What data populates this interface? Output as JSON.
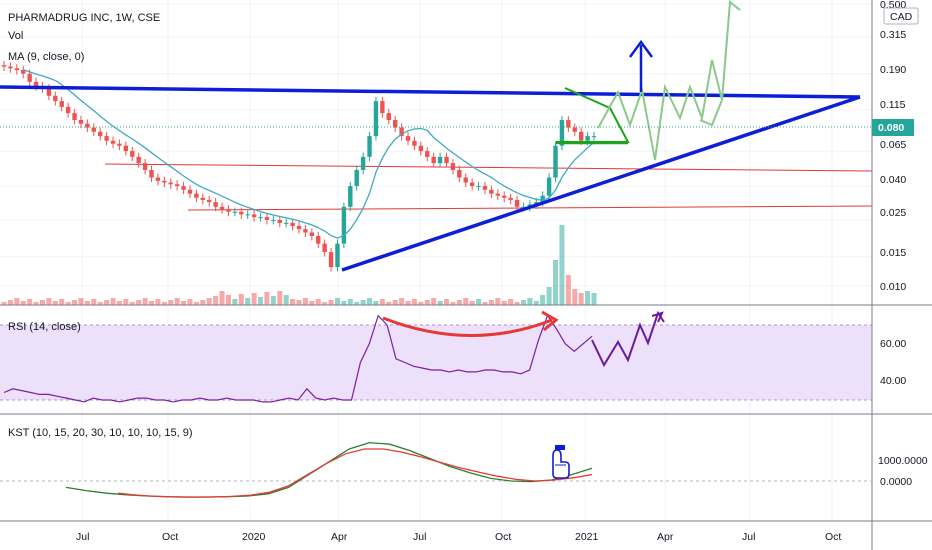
{
  "header": {
    "title": "PHARMADRUG INC, 1W, CSE",
    "vol_label": "Vol",
    "ma_label": "MA (9, close, 0)",
    "currency": "CAD"
  },
  "price_axis": {
    "ticks": [
      "0.500",
      "0.315",
      "0.190",
      "0.115",
      "0.065",
      "0.040",
      "0.025",
      "0.015",
      "0.010"
    ],
    "last_price": "0.080"
  },
  "rsi": {
    "label": "RSI (14, close)",
    "ticks": [
      "60.00",
      "40.00"
    ]
  },
  "kst": {
    "label": "KST (10, 15, 20, 30, 10, 10, 10, 15, 9)",
    "ticks": [
      "1000.0000",
      "0.0000"
    ]
  },
  "time_axis": {
    "ticks": [
      "Jul",
      "Oct",
      "2020",
      "Apr",
      "Jul",
      "Oct",
      "2021",
      "Apr",
      "Jul",
      "Oct"
    ]
  },
  "colors": {
    "up": "#26a69a",
    "down": "#ef5350",
    "trendline": "#0d1fd6",
    "ma": "#3fa9c4",
    "rsi": "#7b1fa2",
    "kst": "#2e7d32",
    "signal": "#e53935",
    "price_badge": "#26a69a",
    "projection": "#8bc98b",
    "rsi_band": "#ece0fa"
  },
  "chart_data": [
    {
      "type": "candlestick",
      "scale": "log",
      "title": "PHARMADRUG INC, 1W, CSE",
      "x_labels": [
        "Jul",
        "Oct",
        "2020",
        "Apr",
        "Jul",
        "Oct",
        "2021",
        "Apr",
        "Jul",
        "Oct"
      ],
      "y_ticks": [
        0.5,
        0.315,
        0.19,
        0.115,
        0.065,
        0.04,
        0.025,
        0.015,
        0.01
      ],
      "last_price": 0.08,
      "weekly_close_approx": [
        0.21,
        0.205,
        0.2,
        0.19,
        0.17,
        0.16,
        0.155,
        0.14,
        0.13,
        0.12,
        0.11,
        0.1,
        0.095,
        0.09,
        0.085,
        0.08,
        0.075,
        0.072,
        0.07,
        0.065,
        0.06,
        0.055,
        0.05,
        0.045,
        0.043,
        0.042,
        0.041,
        0.04,
        0.038,
        0.036,
        0.034,
        0.033,
        0.032,
        0.03,
        0.029,
        0.028,
        0.028,
        0.027,
        0.027,
        0.026,
        0.026,
        0.025,
        0.025,
        0.024,
        0.024,
        0.023,
        0.022,
        0.021,
        0.02,
        0.018,
        0.016,
        0.013,
        0.018,
        0.03,
        0.04,
        0.05,
        0.06,
        0.08,
        0.13,
        0.11,
        0.1,
        0.09,
        0.08,
        0.075,
        0.07,
        0.065,
        0.06,
        0.055,
        0.06,
        0.055,
        0.05,
        0.045,
        0.042,
        0.04,
        0.04,
        0.038,
        0.036,
        0.035,
        0.034,
        0.033,
        0.03,
        0.03,
        0.031,
        0.032,
        0.035,
        0.045,
        0.07,
        0.1,
        0.09,
        0.085,
        0.075,
        0.08,
        0.08
      ],
      "horizontal_levels": [
        0.048,
        0.027
      ],
      "resistance_line": {
        "from": 0.14,
        "to": 0.13
      },
      "support_line": {
        "from": 0.0115,
        "to": 0.13
      }
    },
    {
      "type": "line",
      "name": "RSI (14, close)",
      "y_ticks": [
        60,
        40
      ],
      "values": [
        34,
        36,
        35,
        34,
        33,
        33,
        32,
        31,
        30,
        29,
        31,
        30,
        30,
        29,
        30,
        31,
        31,
        30,
        30,
        29,
        30,
        30,
        31,
        30,
        30,
        31,
        30,
        30,
        30,
        29,
        29,
        30,
        31,
        30,
        36,
        31,
        30,
        31,
        30,
        30,
        50,
        60,
        75,
        70,
        52,
        50,
        48,
        47,
        46,
        46,
        45,
        46,
        45,
        45,
        46,
        46,
        45,
        45,
        44,
        46,
        62,
        75,
        68,
        60,
        56,
        60,
        64
      ],
      "projection": [
        60,
        50,
        58,
        53,
        62,
        59,
        72
      ]
    },
    {
      "type": "line",
      "name": "KST (10, 15, 20, 30, 10, 10, 10, 15, 9)",
      "y_ticks": [
        1000,
        0
      ],
      "series": [
        {
          "values": [
            -200,
            -300,
            -380,
            -430,
            -470,
            -490,
            -500,
            -500,
            -490,
            -470,
            -400,
            -200,
            200,
            600,
            1000,
            1200,
            1150,
            950,
            700,
            450,
            250,
            80,
            0,
            -20,
            30,
            200,
            400
          ]
        },
        {
          "values": [
            -380,
            -440,
            -480,
            -500,
            -505,
            -500,
            -480,
            -440,
            -350,
            -150,
            200,
            550,
            850,
            1000,
            1000,
            900,
            750,
            580,
            420,
            280,
            150,
            50,
            0,
            30,
            100,
            200
          ]
        }
      ]
    }
  ]
}
